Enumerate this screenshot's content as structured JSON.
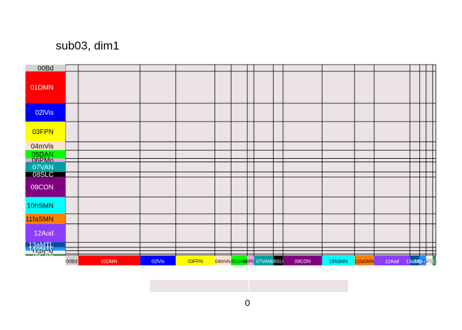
{
  "chart_data": {
    "type": "heatmap",
    "title": "sub03, dim1",
    "cell_value": 0,
    "cell_color": "#ebe3e6",
    "grid_color": "#000000",
    "networks": [
      {
        "label": "00Bd",
        "size": 4,
        "color": "#d3d3d3",
        "text_color": "#000000"
      },
      {
        "label": "01DMN",
        "size": 19,
        "color": "#ff0000",
        "text_color": "#ffffff"
      },
      {
        "label": "02lVis",
        "size": 11,
        "color": "#0000ff",
        "text_color": "#ffffff"
      },
      {
        "label": "03FPN",
        "size": 12,
        "color": "#ffff00",
        "text_color": "#000000"
      },
      {
        "label": "04mVis",
        "size": 5,
        "color": "#fce3d2",
        "text_color": "#000000"
      },
      {
        "label": "05DAN",
        "size": 5,
        "color": "#00ff00",
        "text_color": "#000000"
      },
      {
        "label": "06PMo",
        "size": 2,
        "color": "#ff9ee6",
        "text_color": "#000000"
      },
      {
        "label": "07VAN",
        "size": 6,
        "color": "#00a0a0",
        "text_color": "#ffffff"
      },
      {
        "label": "08SLC",
        "size": 3,
        "color": "#000000",
        "text_color": "#ffffff"
      },
      {
        "label": "09CON",
        "size": 12,
        "color": "#800080",
        "text_color": "#ffffff"
      },
      {
        "label": "10hSMN",
        "size": 10,
        "color": "#00ffff",
        "text_color": "#000000"
      },
      {
        "label": "11faSMN",
        "size": 6,
        "color": "#ff8000",
        "text_color": "#000000"
      },
      {
        "label": "12Aud",
        "size": 11,
        "color": "#8c3cff",
        "text_color": "#ffffff"
      },
      {
        "label": "13aMTL",
        "size": 3,
        "color": "#0050a0",
        "text_color": "#ffffff"
      },
      {
        "label": "14pMTL",
        "size": 2,
        "color": "#1e90ff",
        "text_color": "#ffffff"
      },
      {
        "label": "15PCN",
        "size": 2,
        "color": "#fff0f0",
        "text_color": "#000000"
      },
      {
        "label": "16CAN",
        "size": 1,
        "color": "#2e8b57",
        "text_color": "#ffffff"
      }
    ],
    "colorbar": {
      "ticks": [
        "0"
      ],
      "color": "#ebe3e6"
    }
  }
}
